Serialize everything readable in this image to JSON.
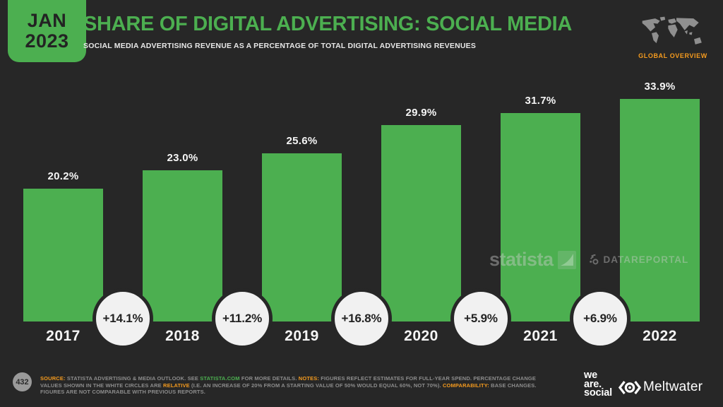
{
  "header": {
    "date_badge": {
      "month": "JAN",
      "year": "2023"
    },
    "title": "SHARE OF DIGITAL ADVERTISING: SOCIAL MEDIA",
    "subtitle": "SOCIAL MEDIA ADVERTISING REVENUE AS A PERCENTAGE OF TOTAL DIGITAL ADVERTISING REVENUES",
    "region_label": "GLOBAL OVERVIEW"
  },
  "chart_data": {
    "type": "bar",
    "title": "SHARE OF DIGITAL ADVERTISING: SOCIAL MEDIA",
    "xlabel": "",
    "ylabel": "",
    "categories": [
      "2017",
      "2018",
      "2019",
      "2020",
      "2021",
      "2022"
    ],
    "values": [
      20.2,
      23.0,
      25.6,
      29.9,
      31.7,
      33.9
    ],
    "value_labels": [
      "20.2%",
      "23.0%",
      "25.6%",
      "29.9%",
      "31.7%",
      "33.9%"
    ],
    "change_labels": [
      "+14.1%",
      "+11.2%",
      "+16.8%",
      "+5.9%",
      "+6.9%"
    ],
    "ylim": [
      0,
      36
    ],
    "grid": false,
    "legend": "none",
    "bar_color": "#4CAF50",
    "change_circle_color": "#F1F1F1"
  },
  "watermarks": {
    "statista": "statista",
    "datareportal": "DATAREPORTAL"
  },
  "footer": {
    "page_number": "432",
    "note_segments": [
      {
        "text": "SOURCE: ",
        "style": "orange"
      },
      {
        "text": "STATISTA ADVERTISING & MEDIA OUTLOOK. SEE ",
        "style": "gray"
      },
      {
        "text": "STATISTA.COM",
        "style": "green"
      },
      {
        "text": " FOR MORE DETAILS. ",
        "style": "gray"
      },
      {
        "text": "NOTES: ",
        "style": "orange"
      },
      {
        "text": "FIGURES REFLECT ESTIMATES FOR FULL-YEAR SPEND. PERCENTAGE CHANGE VALUES SHOWN IN THE WHITE CIRCLES ARE ",
        "style": "gray"
      },
      {
        "text": "RELATIVE",
        "style": "orange"
      },
      {
        "text": " (I.E. AN INCREASE OF 20% FROM A STARTING VALUE OF 50% WOULD EQUAL 60%, NOT 70%). ",
        "style": "gray"
      },
      {
        "text": "COMPARABILITY: ",
        "style": "orange"
      },
      {
        "text": "BASE CHANGES. FIGURES ARE NOT COMPARABLE WITH PREVIOUS REPORTS.",
        "style": "gray"
      }
    ],
    "logos": {
      "we_are_social_lines": [
        "we",
        "are.",
        "social"
      ],
      "meltwater": "Meltwater"
    }
  },
  "colors": {
    "background": "#272727",
    "green": "#4CAF50",
    "orange": "#F59B1E",
    "circle_fill": "#F1F1F1",
    "text_white": "#F5F5F5",
    "footer_gray": "#8D8D8D"
  }
}
